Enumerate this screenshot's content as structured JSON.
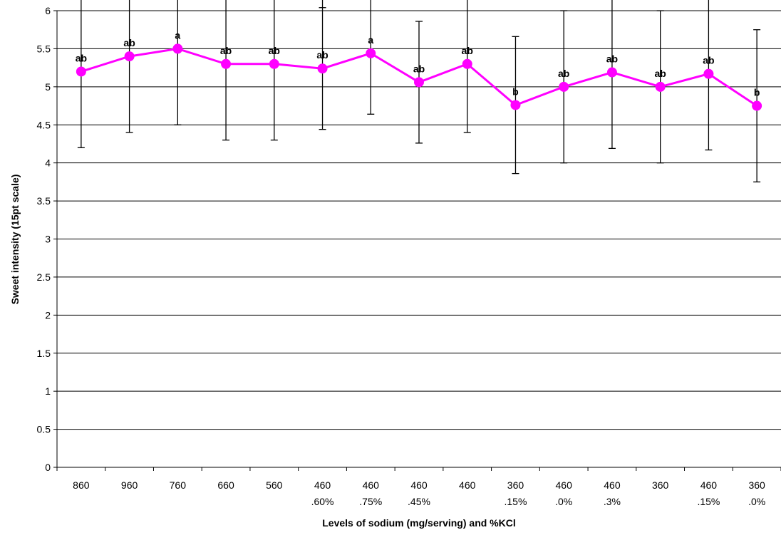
{
  "chart_data": {
    "type": "line",
    "xlabel": "Levels of sodium (mg/serving) and %KCl",
    "ylabel": "Sweet intensity (15pt scale)",
    "ylim": [
      0,
      6
    ],
    "yticks": [
      "0",
      "0.5",
      "1",
      "1.5",
      "2",
      "2.5",
      "3",
      "3.5",
      "4",
      "4.5",
      "5",
      "5.5",
      "6"
    ],
    "grid": "horizontal",
    "categories": [
      [
        "860",
        ""
      ],
      [
        "960",
        ""
      ],
      [
        "760",
        ""
      ],
      [
        "660",
        ""
      ],
      [
        "560",
        ""
      ],
      [
        "460",
        ".60%"
      ],
      [
        "460",
        ".75%"
      ],
      [
        "460",
        ".45%"
      ],
      [
        "460",
        ""
      ],
      [
        "360",
        ".15%"
      ],
      [
        "460",
        ".0%"
      ],
      [
        "460",
        ".3%"
      ],
      [
        "360",
        ""
      ],
      [
        "460",
        ".15%"
      ],
      [
        "360",
        ".0%"
      ]
    ],
    "series": [
      {
        "values": [
          5.2,
          5.4,
          5.5,
          5.3,
          5.3,
          5.24,
          5.44,
          5.06,
          5.3,
          4.76,
          5.0,
          5.19,
          5.0,
          5.17,
          4.75
        ],
        "error_low": [
          4.2,
          4.4,
          4.5,
          4.3,
          4.3,
          4.44,
          4.64,
          4.26,
          4.4,
          3.86,
          4.0,
          4.19,
          4.0,
          4.17,
          3.75
        ],
        "error_high": [
          6.2,
          6.4,
          6.5,
          6.3,
          6.3,
          6.04,
          6.24,
          5.86,
          6.2,
          5.66,
          6.0,
          6.19,
          6.0,
          6.17,
          5.75
        ],
        "significance": [
          "ab",
          "ab",
          "a",
          "ab",
          "ab",
          "ab",
          "a",
          "ab",
          "ab",
          "b",
          "ab",
          "ab",
          "ab",
          "ab",
          "b"
        ],
        "color": "#ff00ff"
      }
    ]
  }
}
